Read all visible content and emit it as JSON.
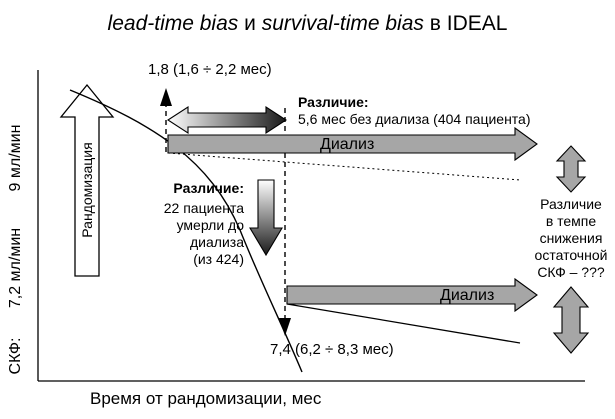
{
  "title": {
    "italic_1": "lead-time bias",
    "mid": " и ",
    "italic_2": "survival-time bias",
    "tail": " в IDEAL"
  },
  "axes": {
    "x_label": "Время от рандомизации, мес",
    "y_label_ckf": "СКФ:",
    "y_label_72": "7,2 мл/мин",
    "y_label_9": "9 мл/мин"
  },
  "labels": {
    "randomization": "Рандомизация",
    "early_time": "1,8 (1,6 ÷ 2,2 мес)",
    "late_time": "7,4 (6,2 ÷ 8,3 мес)",
    "dialysis_upper": "Диализ",
    "dialysis_lower": "Диализ",
    "diff1_title": "Различие:",
    "diff1_text": "5,6 мес без диализа (404 пациента)",
    "diff2_title": "Различие:",
    "diff2_line1": "22 пациента",
    "diff2_line2": "умерли до",
    "diff2_line3": "диализа",
    "diff2_line4": "(из 424)",
    "rate_line1": "Различие",
    "rate_line2": "в темпе",
    "rate_line3": "снижения",
    "rate_line4": "остаточной",
    "rate_line5": "СКФ – ???"
  },
  "colors": {
    "arrow_fill": "#a6a6a6",
    "gradient_dark": "#1a1a1a",
    "line": "#000000"
  }
}
